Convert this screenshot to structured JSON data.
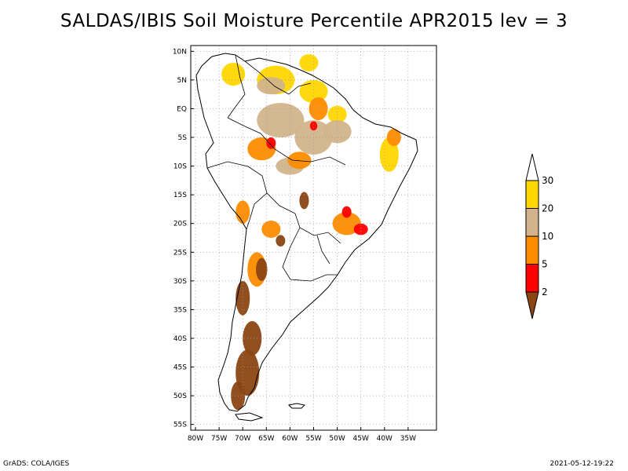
{
  "title": "SALDAS/IBIS Soil Moisture Percentile APR2015 lev = 3",
  "footer": {
    "left": "GrADS: COLA/IGES",
    "right": "2021-05-12-19:22"
  },
  "map": {
    "lon_range": [
      -81,
      -29
    ],
    "lat_range": [
      -56,
      11
    ],
    "lat_ticks": [
      {
        "value": 10,
        "label": "10N"
      },
      {
        "value": 5,
        "label": "5N"
      },
      {
        "value": 0,
        "label": "EQ"
      },
      {
        "value": -5,
        "label": "5S"
      },
      {
        "value": -10,
        "label": "10S"
      },
      {
        "value": -15,
        "label": "15S"
      },
      {
        "value": -20,
        "label": "20S"
      },
      {
        "value": -25,
        "label": "25S"
      },
      {
        "value": -30,
        "label": "30S"
      },
      {
        "value": -35,
        "label": "35S"
      },
      {
        "value": -40,
        "label": "40S"
      },
      {
        "value": -45,
        "label": "45S"
      },
      {
        "value": -50,
        "label": "50S"
      },
      {
        "value": -55,
        "label": "55S"
      }
    ],
    "lon_ticks": [
      {
        "value": -80,
        "label": "80W"
      },
      {
        "value": -75,
        "label": "75W"
      },
      {
        "value": -70,
        "label": "70W"
      },
      {
        "value": -65,
        "label": "65W"
      },
      {
        "value": -60,
        "label": "60W"
      },
      {
        "value": -55,
        "label": "55W"
      },
      {
        "value": -50,
        "label": "50W"
      },
      {
        "value": -45,
        "label": "45W"
      },
      {
        "value": -40,
        "label": "40W"
      },
      {
        "value": -35,
        "label": "35W"
      }
    ],
    "gridlines": true
  },
  "colorbar": {
    "bins": [
      {
        "color": "#8b4513"
      },
      {
        "color": "#ff0000"
      },
      {
        "color": "#ff8c00"
      },
      {
        "color": "#d2b48c"
      },
      {
        "color": "#ffd700"
      },
      {
        "color": "#ffffff"
      }
    ],
    "labels": [
      "2",
      "5",
      "10",
      "20",
      "30"
    ]
  },
  "regions": [
    {
      "category": "20-30",
      "color": "#ffd700",
      "lon": -63,
      "lat": 5,
      "rx": 4,
      "ry": 2.5
    },
    {
      "category": "20-30",
      "color": "#ffd700",
      "lon": -55,
      "lat": 3,
      "rx": 3,
      "ry": 2
    },
    {
      "category": "20-30",
      "color": "#ffd700",
      "lon": -72,
      "lat": 6,
      "rx": 2.5,
      "ry": 2
    },
    {
      "category": "20-30",
      "color": "#ffd700",
      "lon": -50,
      "lat": -1,
      "rx": 2,
      "ry": 1.5
    },
    {
      "category": "20-30",
      "color": "#ffd700",
      "lon": -39,
      "lat": -8,
      "rx": 2,
      "ry": 3
    },
    {
      "category": "20-30",
      "color": "#ffd700",
      "lon": -56,
      "lat": 8,
      "rx": 2,
      "ry": 1.5
    },
    {
      "category": "10-20",
      "color": "#d2b48c",
      "lon": -62,
      "lat": -2,
      "rx": 5,
      "ry": 3
    },
    {
      "category": "10-20",
      "color": "#d2b48c",
      "lon": -55,
      "lat": -5,
      "rx": 4,
      "ry": 3
    },
    {
      "category": "10-20",
      "color": "#d2b48c",
      "lon": -50,
      "lat": -4,
      "rx": 3,
      "ry": 2
    },
    {
      "category": "10-20",
      "color": "#d2b48c",
      "lon": -64,
      "lat": 4,
      "rx": 3,
      "ry": 1.5
    },
    {
      "category": "10-20",
      "color": "#d2b48c",
      "lon": -60,
      "lat": -10,
      "rx": 3,
      "ry": 1.5
    },
    {
      "category": "5-10",
      "color": "#ff8c00",
      "lon": -66,
      "lat": -7,
      "rx": 3,
      "ry": 2
    },
    {
      "category": "5-10",
      "color": "#ff8c00",
      "lon": -58,
      "lat": -9,
      "rx": 2.5,
      "ry": 1.5
    },
    {
      "category": "5-10",
      "color": "#ff8c00",
      "lon": -54,
      "lat": 0,
      "rx": 2,
      "ry": 2
    },
    {
      "category": "5-10",
      "color": "#ff8c00",
      "lon": -48,
      "lat": -20,
      "rx": 3,
      "ry": 2
    },
    {
      "category": "5-10",
      "color": "#ff8c00",
      "lon": -67,
      "lat": -28,
      "rx": 2,
      "ry": 3
    },
    {
      "category": "5-10",
      "color": "#ff8c00",
      "lon": -70,
      "lat": -18,
      "rx": 1.5,
      "ry": 2
    },
    {
      "category": "5-10",
      "color": "#ff8c00",
      "lon": -64,
      "lat": -21,
      "rx": 2,
      "ry": 1.5
    },
    {
      "category": "5-10",
      "color": "#ff8c00",
      "lon": -38,
      "lat": -5,
      "rx": 1.5,
      "ry": 1.5
    },
    {
      "category": "2-5",
      "color": "#ff0000",
      "lon": -64,
      "lat": -6,
      "rx": 1,
      "ry": 1
    },
    {
      "category": "2-5",
      "color": "#ff0000",
      "lon": -55,
      "lat": -3,
      "rx": 0.8,
      "ry": 0.8
    },
    {
      "category": "2-5",
      "color": "#ff0000",
      "lon": -45,
      "lat": -21,
      "rx": 1.5,
      "ry": 1
    },
    {
      "category": "2-5",
      "color": "#ff0000",
      "lon": -48,
      "lat": -18,
      "rx": 1,
      "ry": 1
    },
    {
      "category": "0-2",
      "color": "#8b4513",
      "lon": -70,
      "lat": -33,
      "rx": 1.5,
      "ry": 3
    },
    {
      "category": "0-2",
      "color": "#8b4513",
      "lon": -68,
      "lat": -40,
      "rx": 2,
      "ry": 3
    },
    {
      "category": "0-2",
      "color": "#8b4513",
      "lon": -69,
      "lat": -46,
      "rx": 2.5,
      "ry": 4
    },
    {
      "category": "0-2",
      "color": "#8b4513",
      "lon": -71,
      "lat": -50,
      "rx": 1.5,
      "ry": 2.5
    },
    {
      "category": "0-2",
      "color": "#8b4513",
      "lon": -66,
      "lat": -28,
      "rx": 1.2,
      "ry": 2
    },
    {
      "category": "0-2",
      "color": "#8b4513",
      "lon": -57,
      "lat": -16,
      "rx": 1,
      "ry": 1.5
    },
    {
      "category": "0-2",
      "color": "#8b4513",
      "lon": -62,
      "lat": -23,
      "rx": 1,
      "ry": 1
    }
  ]
}
